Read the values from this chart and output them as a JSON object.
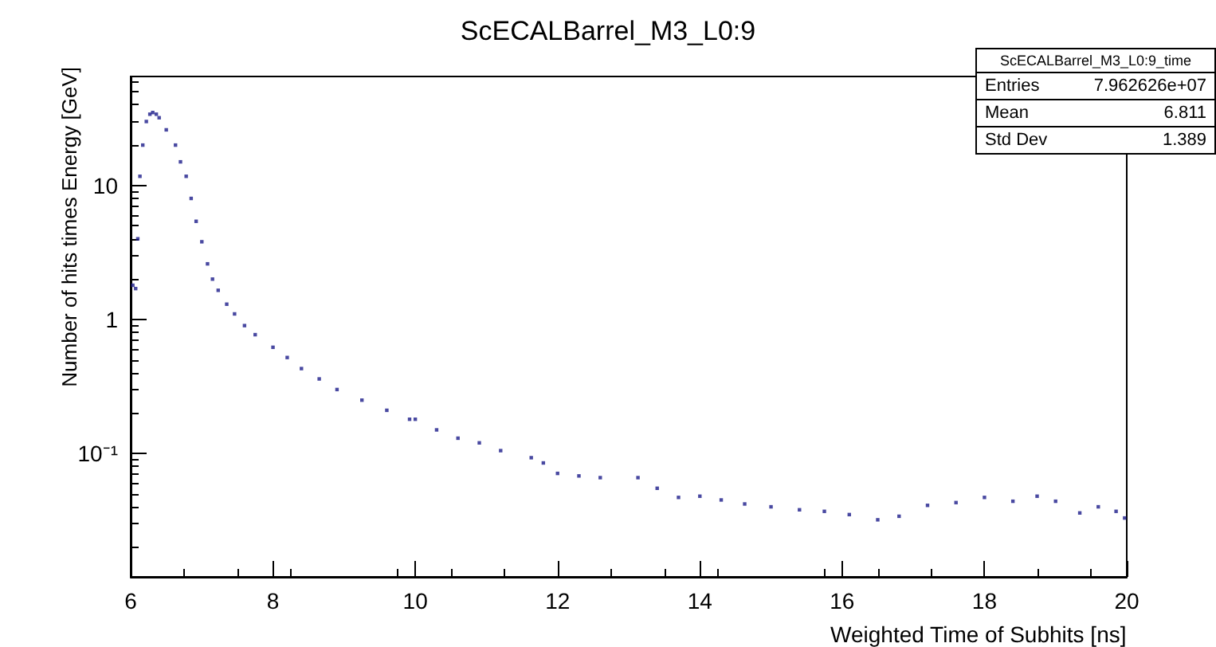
{
  "chart_data": {
    "type": "scatter",
    "title": "ScECALBarrel_M3_L0:9",
    "xlabel": "Weighted Time of Subhits [ns]",
    "ylabel": "Number of hits times Energy [GeV]",
    "annotations": [
      "ScECALBarrel_M3_L0:9_time",
      "Entries",
      "7.962626e+07",
      "Mean",
      "6.811",
      "Std Dev",
      "1.389"
    ],
    "log": "y",
    "grid": false,
    "marker": "square",
    "xlim": [
      6,
      20
    ],
    "xticks": [
      6,
      8,
      10,
      12,
      14,
      16,
      18,
      20
    ],
    "ylim": [
      0.012,
      65
    ],
    "yticks": [
      {
        "value": 0.1,
        "label": "10⁻¹"
      },
      1,
      10
    ],
    "series": [
      {
        "color": "#1c1c8a",
        "x": [
          6.03,
          6.07,
          6.1,
          6.13,
          6.17,
          6.22,
          6.27,
          6.31,
          6.36,
          6.4,
          6.5,
          6.63,
          6.7,
          6.78,
          6.85,
          6.92,
          7.0,
          7.08,
          7.15,
          7.23,
          7.35,
          7.46,
          7.6,
          7.75,
          8.0,
          8.2,
          8.4,
          8.65,
          8.9,
          9.25,
          9.6,
          9.92,
          10.0,
          10.3,
          10.6,
          10.9,
          11.2,
          11.63,
          11.8,
          12.0,
          12.3,
          12.6,
          13.13,
          13.4,
          13.7,
          14.0,
          14.3,
          14.63,
          15.0,
          15.4,
          15.75,
          16.1,
          16.5,
          16.8,
          17.2,
          17.6,
          18.0,
          18.4,
          18.74,
          19.0,
          19.34,
          19.6,
          19.85,
          19.97
        ],
        "values": [
          1.8,
          1.7,
          4,
          11.7,
          20,
          30,
          34,
          35,
          34,
          32,
          26,
          20,
          15,
          11.7,
          8,
          5.4,
          3.8,
          2.6,
          2,
          1.65,
          1.3,
          1.1,
          0.9,
          0.77,
          0.62,
          0.52,
          0.43,
          0.36,
          0.3,
          0.25,
          0.21,
          0.18,
          0.18,
          0.15,
          0.13,
          0.12,
          0.105,
          0.093,
          0.085,
          0.071,
          0.068,
          0.066,
          0.066,
          0.055,
          0.047,
          0.048,
          0.045,
          0.042,
          0.04,
          0.038,
          0.037,
          0.035,
          0.032,
          0.034,
          0.041,
          0.043,
          0.047,
          0.044,
          0.048,
          0.044,
          0.036,
          0.04,
          0.037,
          0.033
        ]
      }
    ]
  }
}
